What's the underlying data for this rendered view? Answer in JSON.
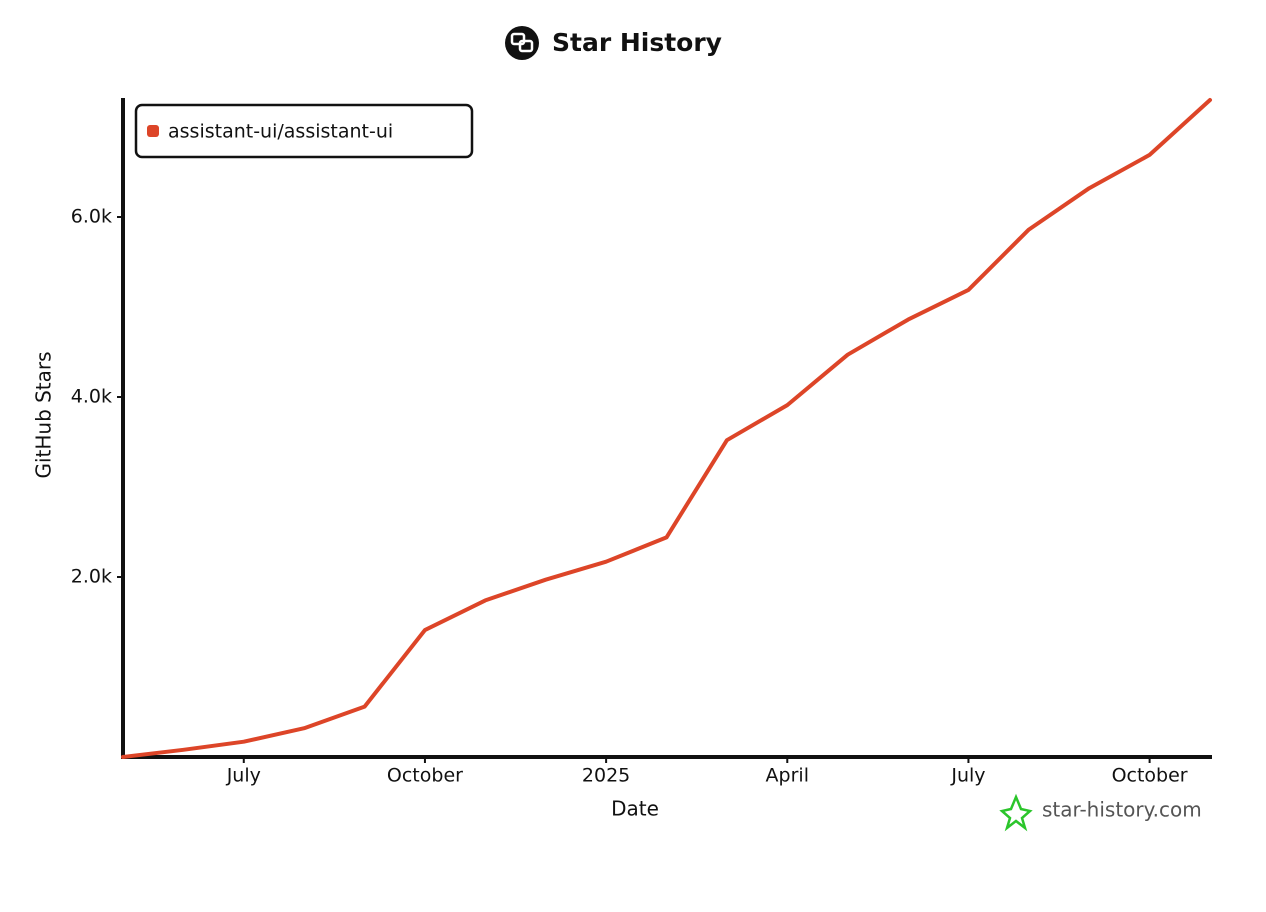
{
  "chart_data": {
    "type": "line",
    "title": "Star History",
    "x_label": "Date",
    "y_label": "GitHub Stars",
    "x": [
      "2024-05",
      "2024-06",
      "2024-07",
      "2024-08",
      "2024-09",
      "2024-10",
      "2024-11",
      "2024-12",
      "2025-01",
      "2025-02",
      "2025-03",
      "2025-04",
      "2025-05",
      "2025-06",
      "2025-07",
      "2025-08",
      "2025-09",
      "2025-10",
      "2025-11"
    ],
    "series": [
      {
        "name": "assistant-ui/assistant-ui",
        "color": "#dd4528",
        "values": [
          0,
          80,
          170,
          320,
          560,
          1410,
          1740,
          1970,
          2170,
          2440,
          3520,
          3910,
          4470,
          4860,
          5190,
          5860,
          6320,
          6690,
          7300
        ]
      }
    ],
    "xlim": [
      "2024-05",
      "2025-11"
    ],
    "xticks": [
      {
        "value": "2024-07",
        "label": "July"
      },
      {
        "value": "2024-10",
        "label": "October"
      },
      {
        "value": "2025-01",
        "label": "2025"
      },
      {
        "value": "2025-04",
        "label": "April"
      },
      {
        "value": "2025-07",
        "label": "July"
      },
      {
        "value": "2025-10",
        "label": "October"
      }
    ],
    "ylim": [
      0,
      7300
    ],
    "yticks": [
      {
        "value": 2000,
        "label": "2.0k"
      },
      {
        "value": 4000,
        "label": "4.0k"
      },
      {
        "value": 6000,
        "label": "6.0k"
      }
    ],
    "legend": "top-left",
    "watermark": "star-history.com"
  }
}
